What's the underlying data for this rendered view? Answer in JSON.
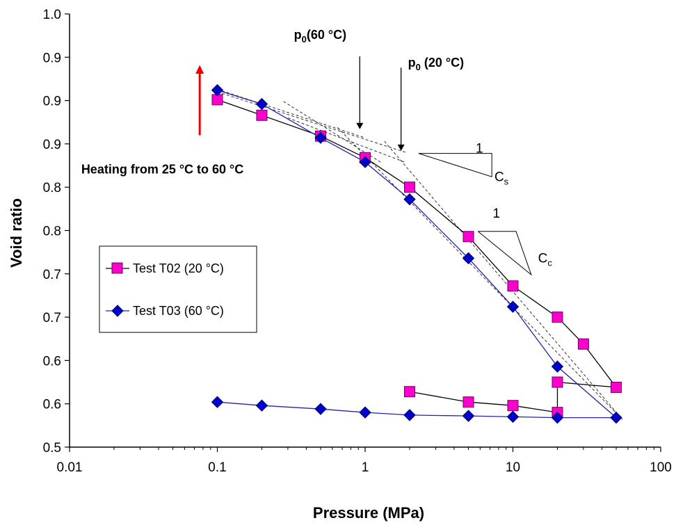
{
  "chart_data": {
    "type": "scatter",
    "xlabel": "Pressure (MPa)",
    "ylabel": "Void ratio",
    "x_scale": "log",
    "xlim": [
      0.01,
      100
    ],
    "ylim": [
      0.5,
      1.0
    ],
    "x_ticks": [
      0.01,
      0.1,
      1,
      10,
      100
    ],
    "x_tick_labels": [
      "0.01",
      "0.1",
      "1",
      "10",
      "100"
    ],
    "y_ticks": [
      0.5,
      0.55,
      0.6,
      0.65,
      0.7,
      0.75,
      0.8,
      0.85,
      0.9,
      0.95,
      1.0
    ],
    "y_tick_labels": [
      "0.5",
      "0.6",
      "0.6",
      "0.7",
      "0.7",
      "0.8",
      "0.8",
      "0.9",
      "0.9",
      "0.9",
      "1.0"
    ],
    "grid": false,
    "legend_position": "left",
    "series": [
      {
        "name": "Test T02 (20 °C)",
        "marker": "square",
        "color": "#ff00cc",
        "line_color": "#000000",
        "x": [
          0.1,
          0.2,
          0.5,
          1,
          2,
          5,
          10,
          20,
          30,
          50,
          20,
          20,
          10,
          5,
          2
        ],
        "y": [
          0.901,
          0.883,
          0.859,
          0.834,
          0.8,
          0.743,
          0.686,
          0.65,
          0.619,
          0.569,
          0.575,
          0.54,
          0.548,
          0.552,
          0.564
        ]
      },
      {
        "name": "Test T03 (60 °C)",
        "marker": "diamond",
        "color": "#0000cc",
        "line_color": "#2222aa",
        "x": [
          0.1,
          0.2,
          0.5,
          1,
          2,
          5,
          10,
          20,
          50,
          20,
          10,
          5,
          2,
          1,
          0.5,
          0.2,
          0.1
        ],
        "y": [
          0.912,
          0.896,
          0.857,
          0.829,
          0.786,
          0.718,
          0.662,
          0.593,
          0.534,
          0.534,
          0.535,
          0.536,
          0.537,
          0.54,
          0.544,
          0.548,
          0.552
        ]
      }
    ],
    "annotations": [
      {
        "text": "Heating from 25 °C to 60 °C",
        "x": 0.012,
        "y": 0.816
      },
      {
        "text_main": "p",
        "text_sub": "0",
        "text_rest": "(60 °C)",
        "x": 0.33,
        "y": 0.971
      },
      {
        "text_main": "p",
        "text_sub": "0",
        "text_rest": " (20 °C)",
        "x": 1.95,
        "y": 0.939
      },
      {
        "text": "1",
        "x": 5.6,
        "y": 0.84
      },
      {
        "text_main": "C",
        "text_sub": "s",
        "x": 7.5,
        "y": 0.807
      },
      {
        "text": "1",
        "x": 7.3,
        "y": 0.765
      },
      {
        "text_main": "C",
        "text_sub": "c",
        "x": 14.8,
        "y": 0.713
      }
    ],
    "arrow_color": "#ee0000"
  }
}
